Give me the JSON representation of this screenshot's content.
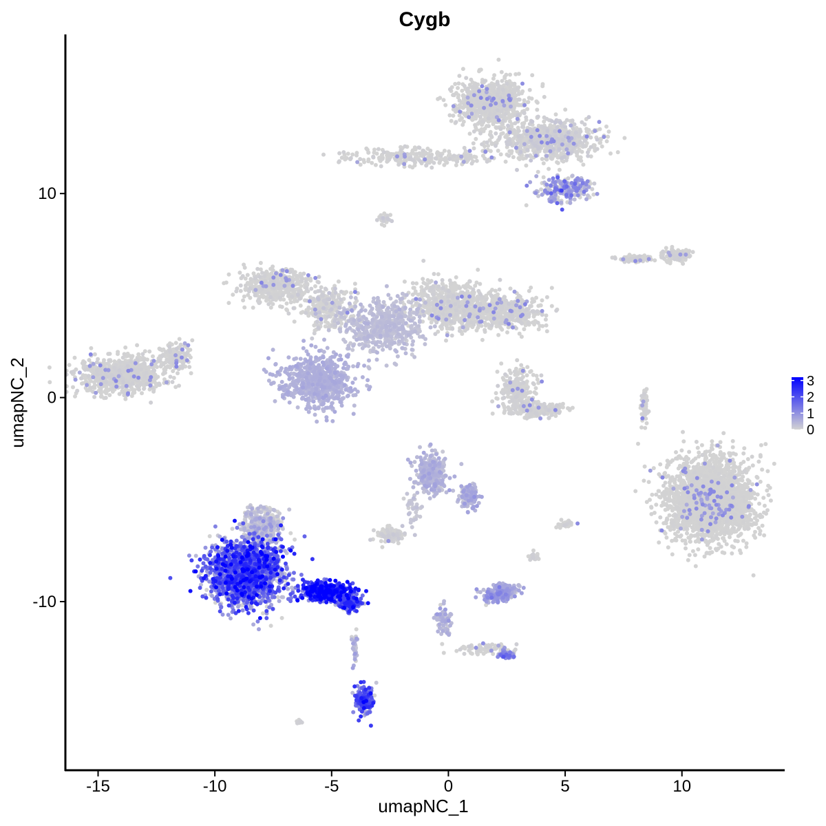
{
  "chart_data": {
    "type": "scatter",
    "title": "Cygb",
    "xlabel": "umapNC_1",
    "ylabel": "umapNC_2",
    "xlim": [
      -16.4,
      14.4
    ],
    "ylim": [
      -18.3,
      17.8
    ],
    "x_ticks": [
      -15,
      -10,
      -5,
      0,
      5,
      10
    ],
    "x_tick_labels": [
      "-15",
      "-10",
      "-5",
      "0",
      "5",
      "10"
    ],
    "y_ticks": [
      -10,
      0,
      10
    ],
    "y_tick_labels": [
      "-10",
      "0",
      "10"
    ],
    "grid": false,
    "legend": {
      "placement": "right",
      "title": "",
      "ticks": [
        0,
        1,
        2,
        3
      ],
      "tick_labels": [
        "0",
        "1",
        "2",
        "3"
      ],
      "range": [
        0,
        3.2
      ]
    },
    "color_scale": {
      "low": "#d3d3d3",
      "high": "#0000ff"
    },
    "clusters": [
      {
        "center": [
          1.8,
          14.5
        ],
        "spread": [
          1.2,
          0.9
        ],
        "n": 900,
        "expr": [
          0,
          0.03
        ]
      },
      {
        "center": [
          4.2,
          12.6
        ],
        "spread": [
          1.8,
          0.8
        ],
        "n": 800,
        "expr": [
          0,
          0.08
        ]
      },
      {
        "center": [
          5.0,
          10.2
        ],
        "spread": [
          0.9,
          0.5
        ],
        "n": 250,
        "expr": [
          0.5,
          0.6
        ]
      },
      {
        "center": [
          -1.5,
          11.8
        ],
        "spread": [
          2.6,
          0.35
        ],
        "n": 250,
        "expr": [
          0,
          0.04
        ]
      },
      {
        "center": [
          -2.7,
          8.8
        ],
        "spread": [
          0.2,
          0.2
        ],
        "n": 25,
        "expr": [
          0,
          0.1
        ]
      },
      {
        "center": [
          -7.4,
          5.5
        ],
        "spread": [
          1.2,
          0.7
        ],
        "n": 450,
        "expr": [
          0,
          0.04
        ]
      },
      {
        "center": [
          -5.2,
          4.4
        ],
        "spread": [
          1.0,
          0.9
        ],
        "n": 250,
        "expr": [
          0,
          0.1
        ]
      },
      {
        "center": [
          -2.8,
          3.5
        ],
        "spread": [
          1.4,
          1.1
        ],
        "n": 500,
        "expr": [
          0.3,
          0.08
        ]
      },
      {
        "center": [
          0.0,
          4.6
        ],
        "spread": [
          1.3,
          1.0
        ],
        "n": 550,
        "expr": [
          0,
          0.04
        ]
      },
      {
        "center": [
          2.3,
          4.2
        ],
        "spread": [
          1.5,
          0.7
        ],
        "n": 550,
        "expr": [
          0,
          0.04
        ]
      },
      {
        "center": [
          -5.6,
          0.8
        ],
        "spread": [
          1.3,
          1.1
        ],
        "n": 650,
        "expr": [
          0.5,
          0.08
        ]
      },
      {
        "center": [
          -14.0,
          1.1
        ],
        "spread": [
          1.4,
          0.75
        ],
        "n": 800,
        "expr": [
          0,
          0.04
        ]
      },
      {
        "center": [
          -11.7,
          2.0
        ],
        "spread": [
          0.6,
          0.6
        ],
        "n": 150,
        "expr": [
          0,
          0.04
        ]
      },
      {
        "center": [
          2.9,
          0.3
        ],
        "spread": [
          0.6,
          0.9
        ],
        "n": 250,
        "expr": [
          0,
          0.04
        ]
      },
      {
        "center": [
          3.8,
          -0.6
        ],
        "spread": [
          1.0,
          0.3
        ],
        "n": 200,
        "expr": [
          0,
          0.04
        ]
      },
      {
        "center": [
          11.2,
          -5.0
        ],
        "spread": [
          1.5,
          1.7
        ],
        "n": 2400,
        "expr": [
          0,
          0.015
        ]
      },
      {
        "center": [
          8.0,
          6.8
        ],
        "spread": [
          0.55,
          0.12
        ],
        "n": 90,
        "expr": [
          0,
          0.04
        ]
      },
      {
        "center": [
          9.8,
          7.0
        ],
        "spread": [
          0.5,
          0.25
        ],
        "n": 110,
        "expr": [
          0,
          0.04
        ]
      },
      {
        "center": [
          8.4,
          -0.4
        ],
        "spread": [
          0.12,
          0.7
        ],
        "n": 70,
        "expr": [
          0,
          0.04
        ]
      },
      {
        "center": [
          -0.7,
          -3.7
        ],
        "spread": [
          0.55,
          0.8
        ],
        "n": 300,
        "expr": [
          0.4,
          0.15
        ]
      },
      {
        "center": [
          0.9,
          -4.8
        ],
        "spread": [
          0.35,
          0.5
        ],
        "n": 120,
        "expr": [
          0.5,
          0.2
        ]
      },
      {
        "center": [
          -2.5,
          -6.8
        ],
        "spread": [
          0.45,
          0.3
        ],
        "n": 120,
        "expr": [
          0,
          0.08
        ]
      },
      {
        "center": [
          -1.5,
          -5.5
        ],
        "spread": [
          0.3,
          0.8
        ],
        "n": 40,
        "expr": [
          0.2,
          0.1
        ]
      },
      {
        "center": [
          2.2,
          -9.6
        ],
        "spread": [
          0.6,
          0.35
        ],
        "n": 220,
        "expr": [
          0.6,
          0.3
        ]
      },
      {
        "center": [
          -8.7,
          -8.6
        ],
        "spread": [
          1.3,
          1.3
        ],
        "n": 1900,
        "expr": [
          1.25,
          0.95
        ]
      },
      {
        "center": [
          -8.0,
          -6.3
        ],
        "spread": [
          0.7,
          0.7
        ],
        "n": 350,
        "expr": [
          0.2,
          0.3
        ]
      },
      {
        "center": [
          -5.3,
          -9.5
        ],
        "spread": [
          0.9,
          0.35
        ],
        "n": 450,
        "expr": [
          2.3,
          1.0
        ]
      },
      {
        "center": [
          -4.2,
          -10.1
        ],
        "spread": [
          0.4,
          0.25
        ],
        "n": 180,
        "expr": [
          1.5,
          0.7
        ]
      },
      {
        "center": [
          -3.6,
          -14.8
        ],
        "spread": [
          0.3,
          0.55
        ],
        "n": 200,
        "expr": [
          1.4,
          0.8
        ]
      },
      {
        "center": [
          -4.0,
          -12.2
        ],
        "spread": [
          0.1,
          0.8
        ],
        "n": 40,
        "expr": [
          0.3,
          0.3
        ]
      },
      {
        "center": [
          -0.2,
          -10.9
        ],
        "spread": [
          0.3,
          0.6
        ],
        "n": 70,
        "expr": [
          0.4,
          0.2
        ]
      },
      {
        "center": [
          1.5,
          -12.3
        ],
        "spread": [
          1.1,
          0.2
        ],
        "n": 70,
        "expr": [
          0,
          0.04
        ]
      },
      {
        "center": [
          2.5,
          -12.6
        ],
        "spread": [
          0.3,
          0.15
        ],
        "n": 50,
        "expr": [
          1.0,
          0.4
        ]
      },
      {
        "center": [
          5.0,
          -6.2
        ],
        "spread": [
          0.3,
          0.15
        ],
        "n": 30,
        "expr": [
          0,
          0.04
        ]
      },
      {
        "center": [
          3.6,
          -7.8
        ],
        "spread": [
          0.15,
          0.2
        ],
        "n": 20,
        "expr": [
          0,
          0.04
        ]
      },
      {
        "center": [
          -6.4,
          -15.9
        ],
        "spread": [
          0.15,
          0.08
        ],
        "n": 12,
        "expr": [
          0,
          0.04
        ]
      }
    ]
  }
}
